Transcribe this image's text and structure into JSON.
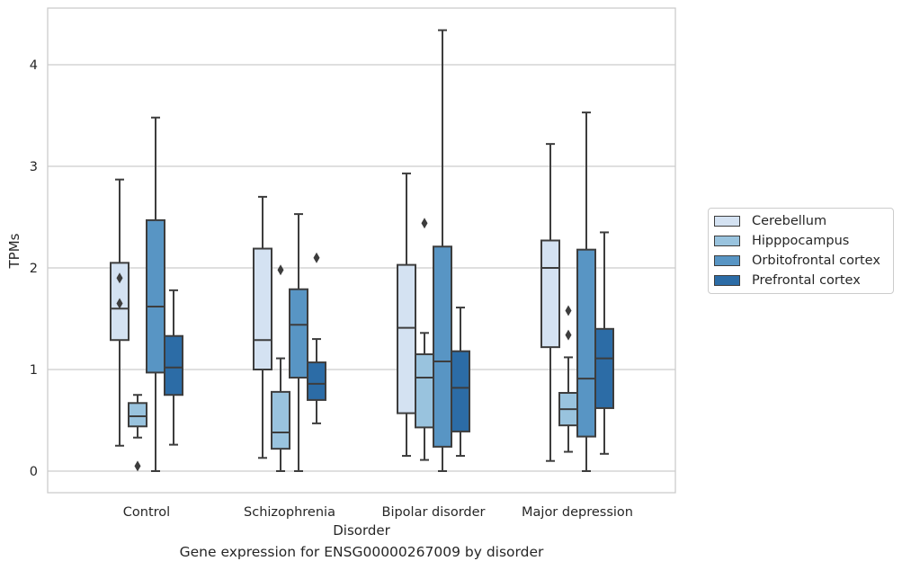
{
  "caption": "Gene expression for ENSG00000267009 by disorder",
  "colors": {
    "background": "#ffffff",
    "grid": "#cccccc",
    "line": "#3d3d3d",
    "text": "#262626"
  },
  "chart_data": {
    "type": "box",
    "xlabel": "Disorder",
    "ylabel": "TPMs",
    "ylim": [
      -0.2,
      4.55
    ],
    "yticks": [
      0,
      1,
      2,
      3,
      4
    ],
    "grid": true,
    "legend_position": "right",
    "categories": [
      "Control",
      "Schizophrenia",
      "Bipolar disorder",
      "Major depression"
    ],
    "series": [
      {
        "name": "Cerebellum",
        "color": "#d4e2f2",
        "boxes": [
          {
            "min": 0.25,
            "q1": 1.29,
            "median": 1.6,
            "q3": 2.05,
            "max": 2.87,
            "outliers": []
          },
          {
            "min": 0.13,
            "q1": 1.0,
            "median": 1.29,
            "q3": 2.19,
            "max": 2.7,
            "outliers": []
          },
          {
            "min": 0.15,
            "q1": 0.57,
            "median": 1.41,
            "q3": 2.03,
            "max": 2.93,
            "outliers": []
          },
          {
            "min": 0.1,
            "q1": 1.22,
            "median": 2.0,
            "q3": 2.27,
            "max": 3.22,
            "outliers": []
          }
        ]
      },
      {
        "name": "Hipppocampus",
        "color": "#99c3de",
        "boxes": [
          {
            "min": 0.33,
            "q1": 0.44,
            "median": 0.54,
            "q3": 0.67,
            "max": 0.75,
            "outliers": [
              0.05
            ]
          },
          {
            "min": 0.0,
            "q1": 0.22,
            "median": 0.38,
            "q3": 0.78,
            "max": 1.11,
            "outliers": []
          },
          {
            "min": 0.11,
            "q1": 0.43,
            "median": 0.92,
            "q3": 1.15,
            "max": 1.36,
            "outliers": [
              2.44
            ]
          },
          {
            "min": 0.19,
            "q1": 0.45,
            "median": 0.61,
            "q3": 0.77,
            "max": 1.12,
            "outliers": []
          }
        ]
      },
      {
        "name": "Orbitofrontal cortex",
        "color": "#5895c4",
        "boxes": [
          {
            "min": 0.0,
            "q1": 0.97,
            "median": 1.62,
            "q3": 2.47,
            "max": 3.48,
            "outliers": []
          },
          {
            "min": 0.0,
            "q1": 0.92,
            "median": 1.44,
            "q3": 1.79,
            "max": 2.53,
            "outliers": []
          },
          {
            "min": 0.0,
            "q1": 0.24,
            "median": 1.08,
            "q3": 2.21,
            "max": 4.34,
            "outliers": []
          },
          {
            "min": 0.0,
            "q1": 0.34,
            "median": 0.91,
            "q3": 2.18,
            "max": 3.53,
            "outliers": []
          }
        ]
      },
      {
        "name": "Prefrontal cortex",
        "color": "#2c6ca6",
        "boxes": [
          {
            "min": 0.26,
            "q1": 0.75,
            "median": 1.02,
            "q3": 1.33,
            "max": 1.78,
            "outliers": []
          },
          {
            "min": 0.47,
            "q1": 0.7,
            "median": 0.86,
            "q3": 1.07,
            "max": 1.3,
            "outliers": []
          },
          {
            "min": 0.15,
            "q1": 0.39,
            "median": 0.82,
            "q3": 1.18,
            "max": 1.61,
            "outliers": []
          },
          {
            "min": 0.17,
            "q1": 0.62,
            "median": 1.11,
            "q3": 1.4,
            "max": 2.35,
            "outliers": []
          }
        ]
      }
    ],
    "extra_outliers": [
      {
        "series": "Cerebellum",
        "category": "Control",
        "values": [
          1.9,
          1.65
        ]
      },
      {
        "series": "Hipppocampus",
        "category": "Schizophrenia",
        "values": [
          1.98
        ]
      },
      {
        "series": "Prefrontal cortex",
        "category": "Schizophrenia",
        "values": [
          2.1
        ]
      },
      {
        "series": "Hipppocampus",
        "category": "Major depression",
        "values": [
          1.58,
          1.34
        ]
      }
    ]
  }
}
